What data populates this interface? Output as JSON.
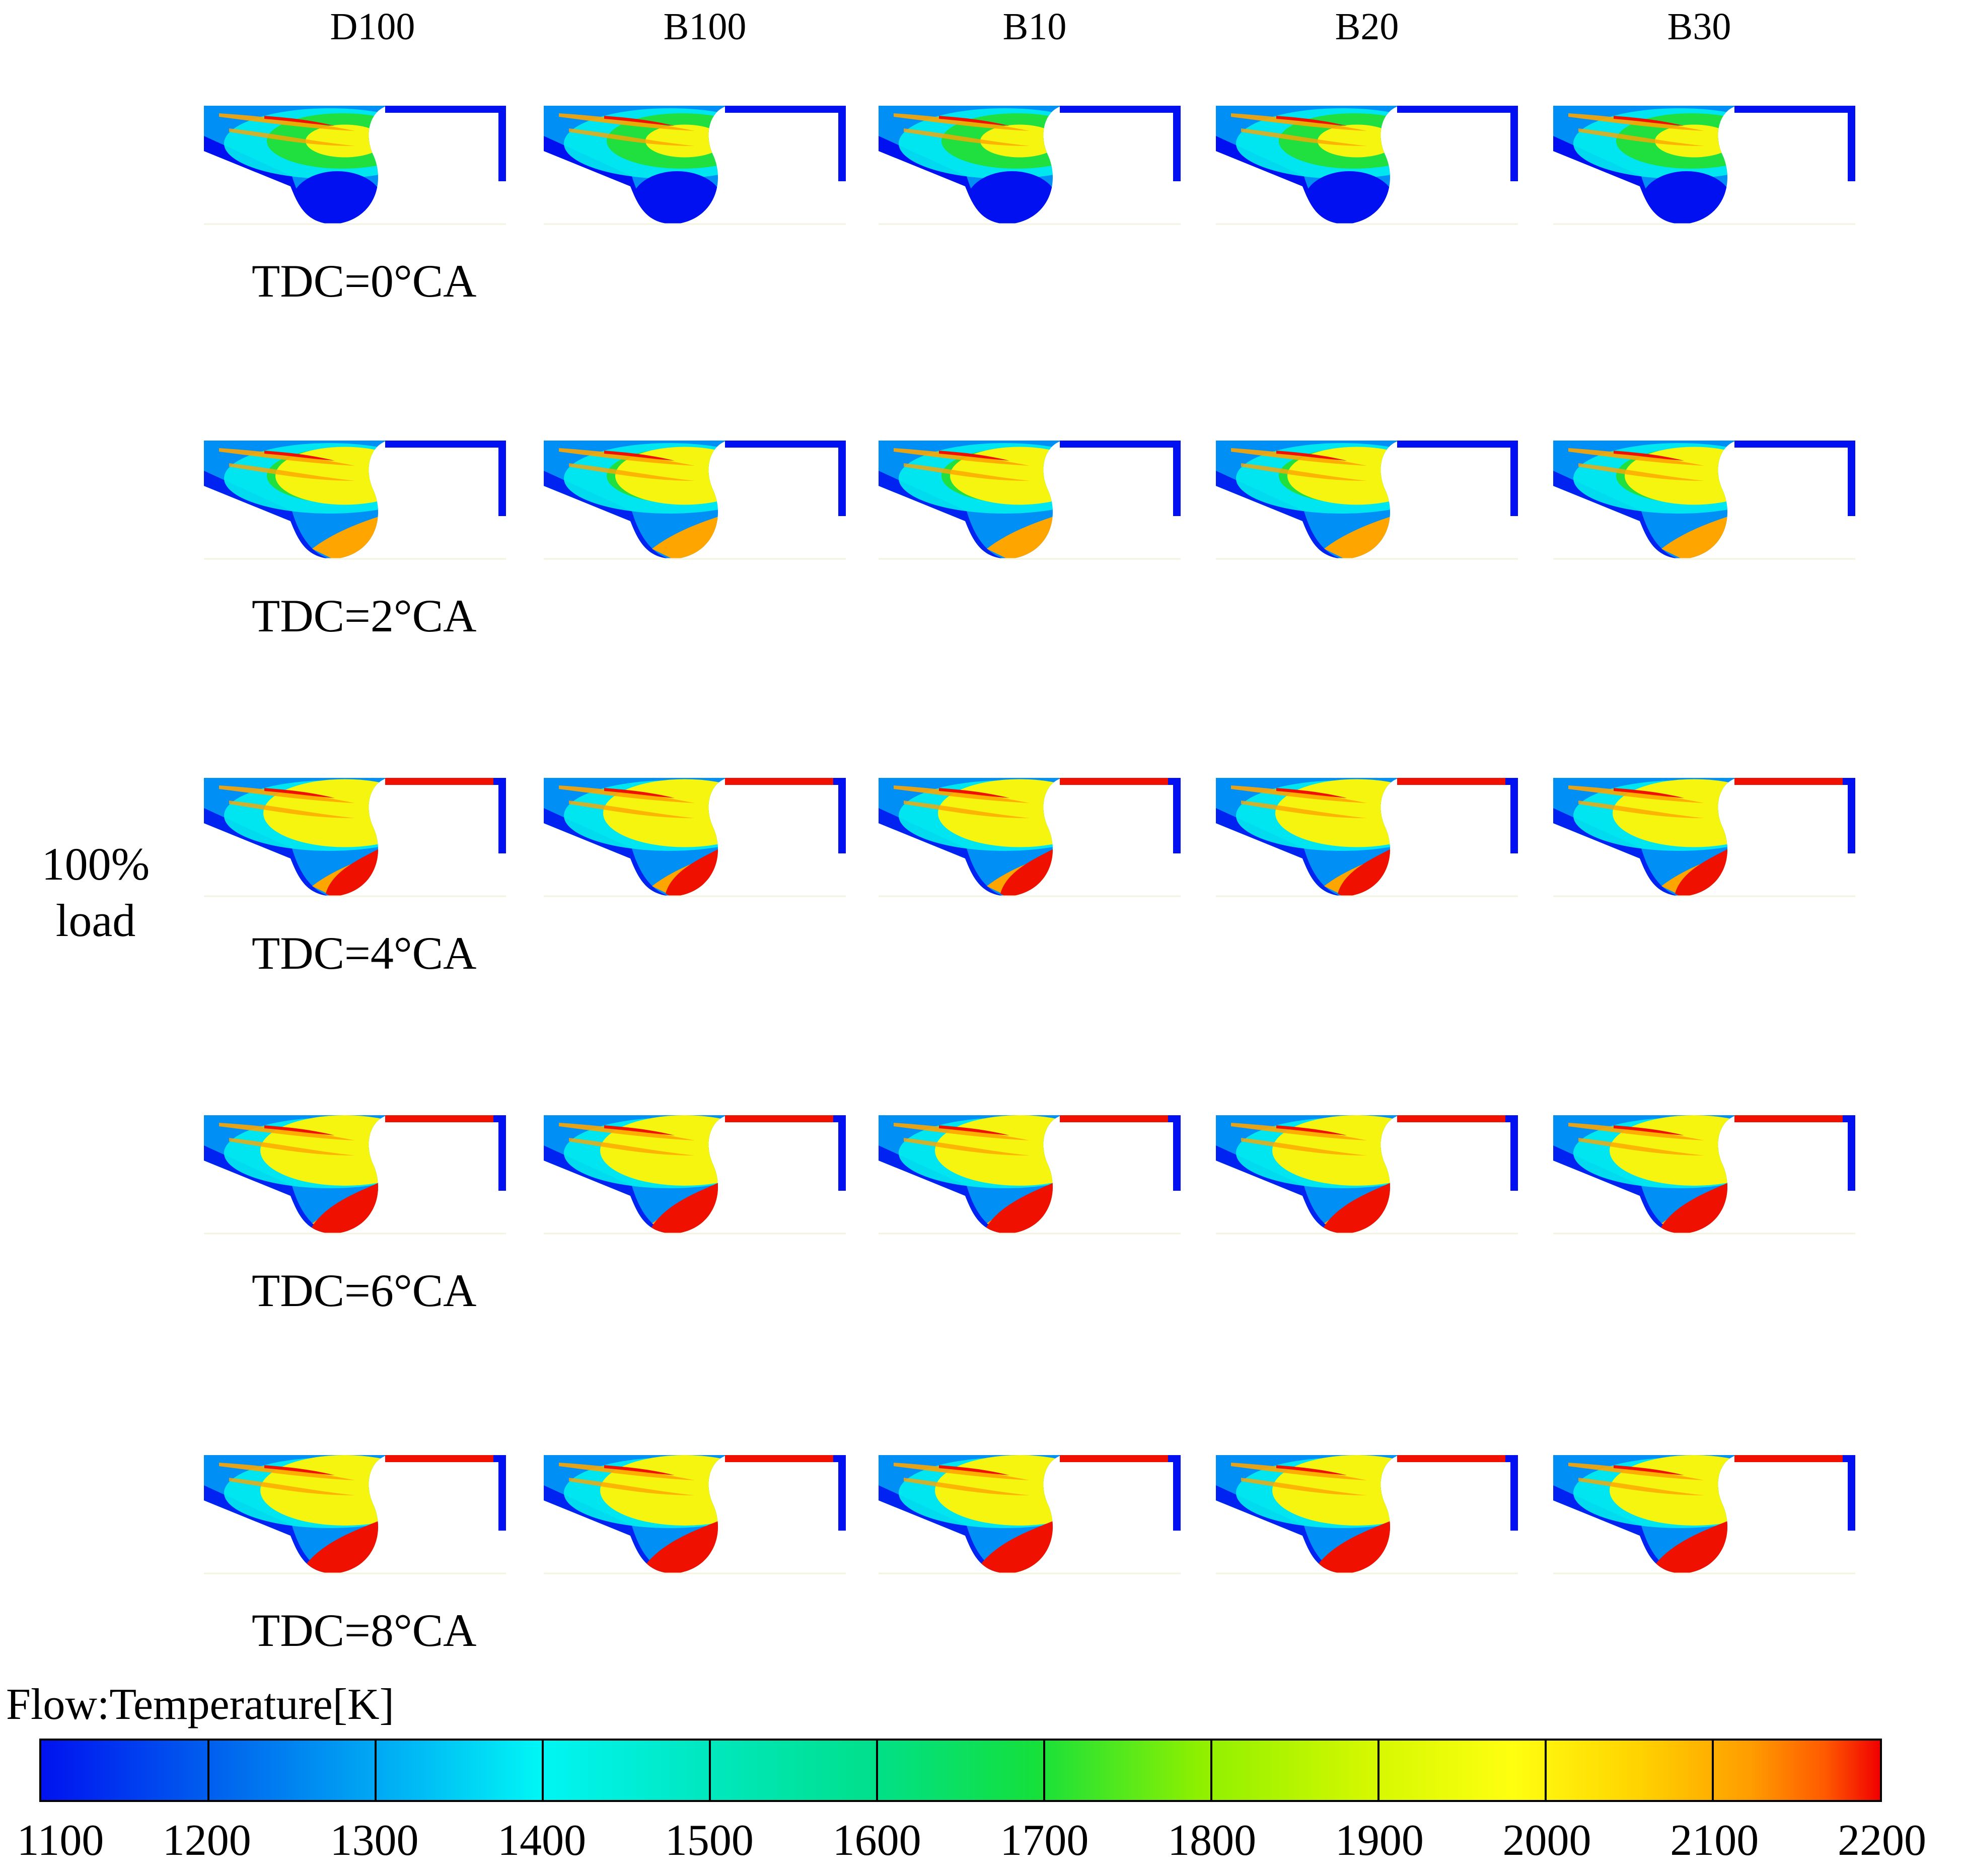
{
  "figure": {
    "columns": [
      "D100",
      "B100",
      "B10",
      "B20",
      "B30"
    ],
    "rows": [
      "TDC=0°CA",
      "TDC=2°CA",
      "TDC=4°CA",
      "TDC=6°CA",
      "TDC=8°CA"
    ],
    "load_label": [
      "100%",
      "load"
    ],
    "legend": {
      "title": "Flow:Temperature[K]",
      "ticks": [
        "1100",
        "1200",
        "1300",
        "1400",
        "1500",
        "1600",
        "1700",
        "1800",
        "1900",
        "2000",
        "2100",
        "2200"
      ],
      "min": 1100,
      "max": 2200
    }
  },
  "colors": {
    "cold": "#0010f0",
    "cool": "#0090f5",
    "cyan": "#00f0f0",
    "green": "#20e040",
    "yellow": "#f5f510",
    "orange": "#ffa500",
    "hot": "#f01000"
  }
}
